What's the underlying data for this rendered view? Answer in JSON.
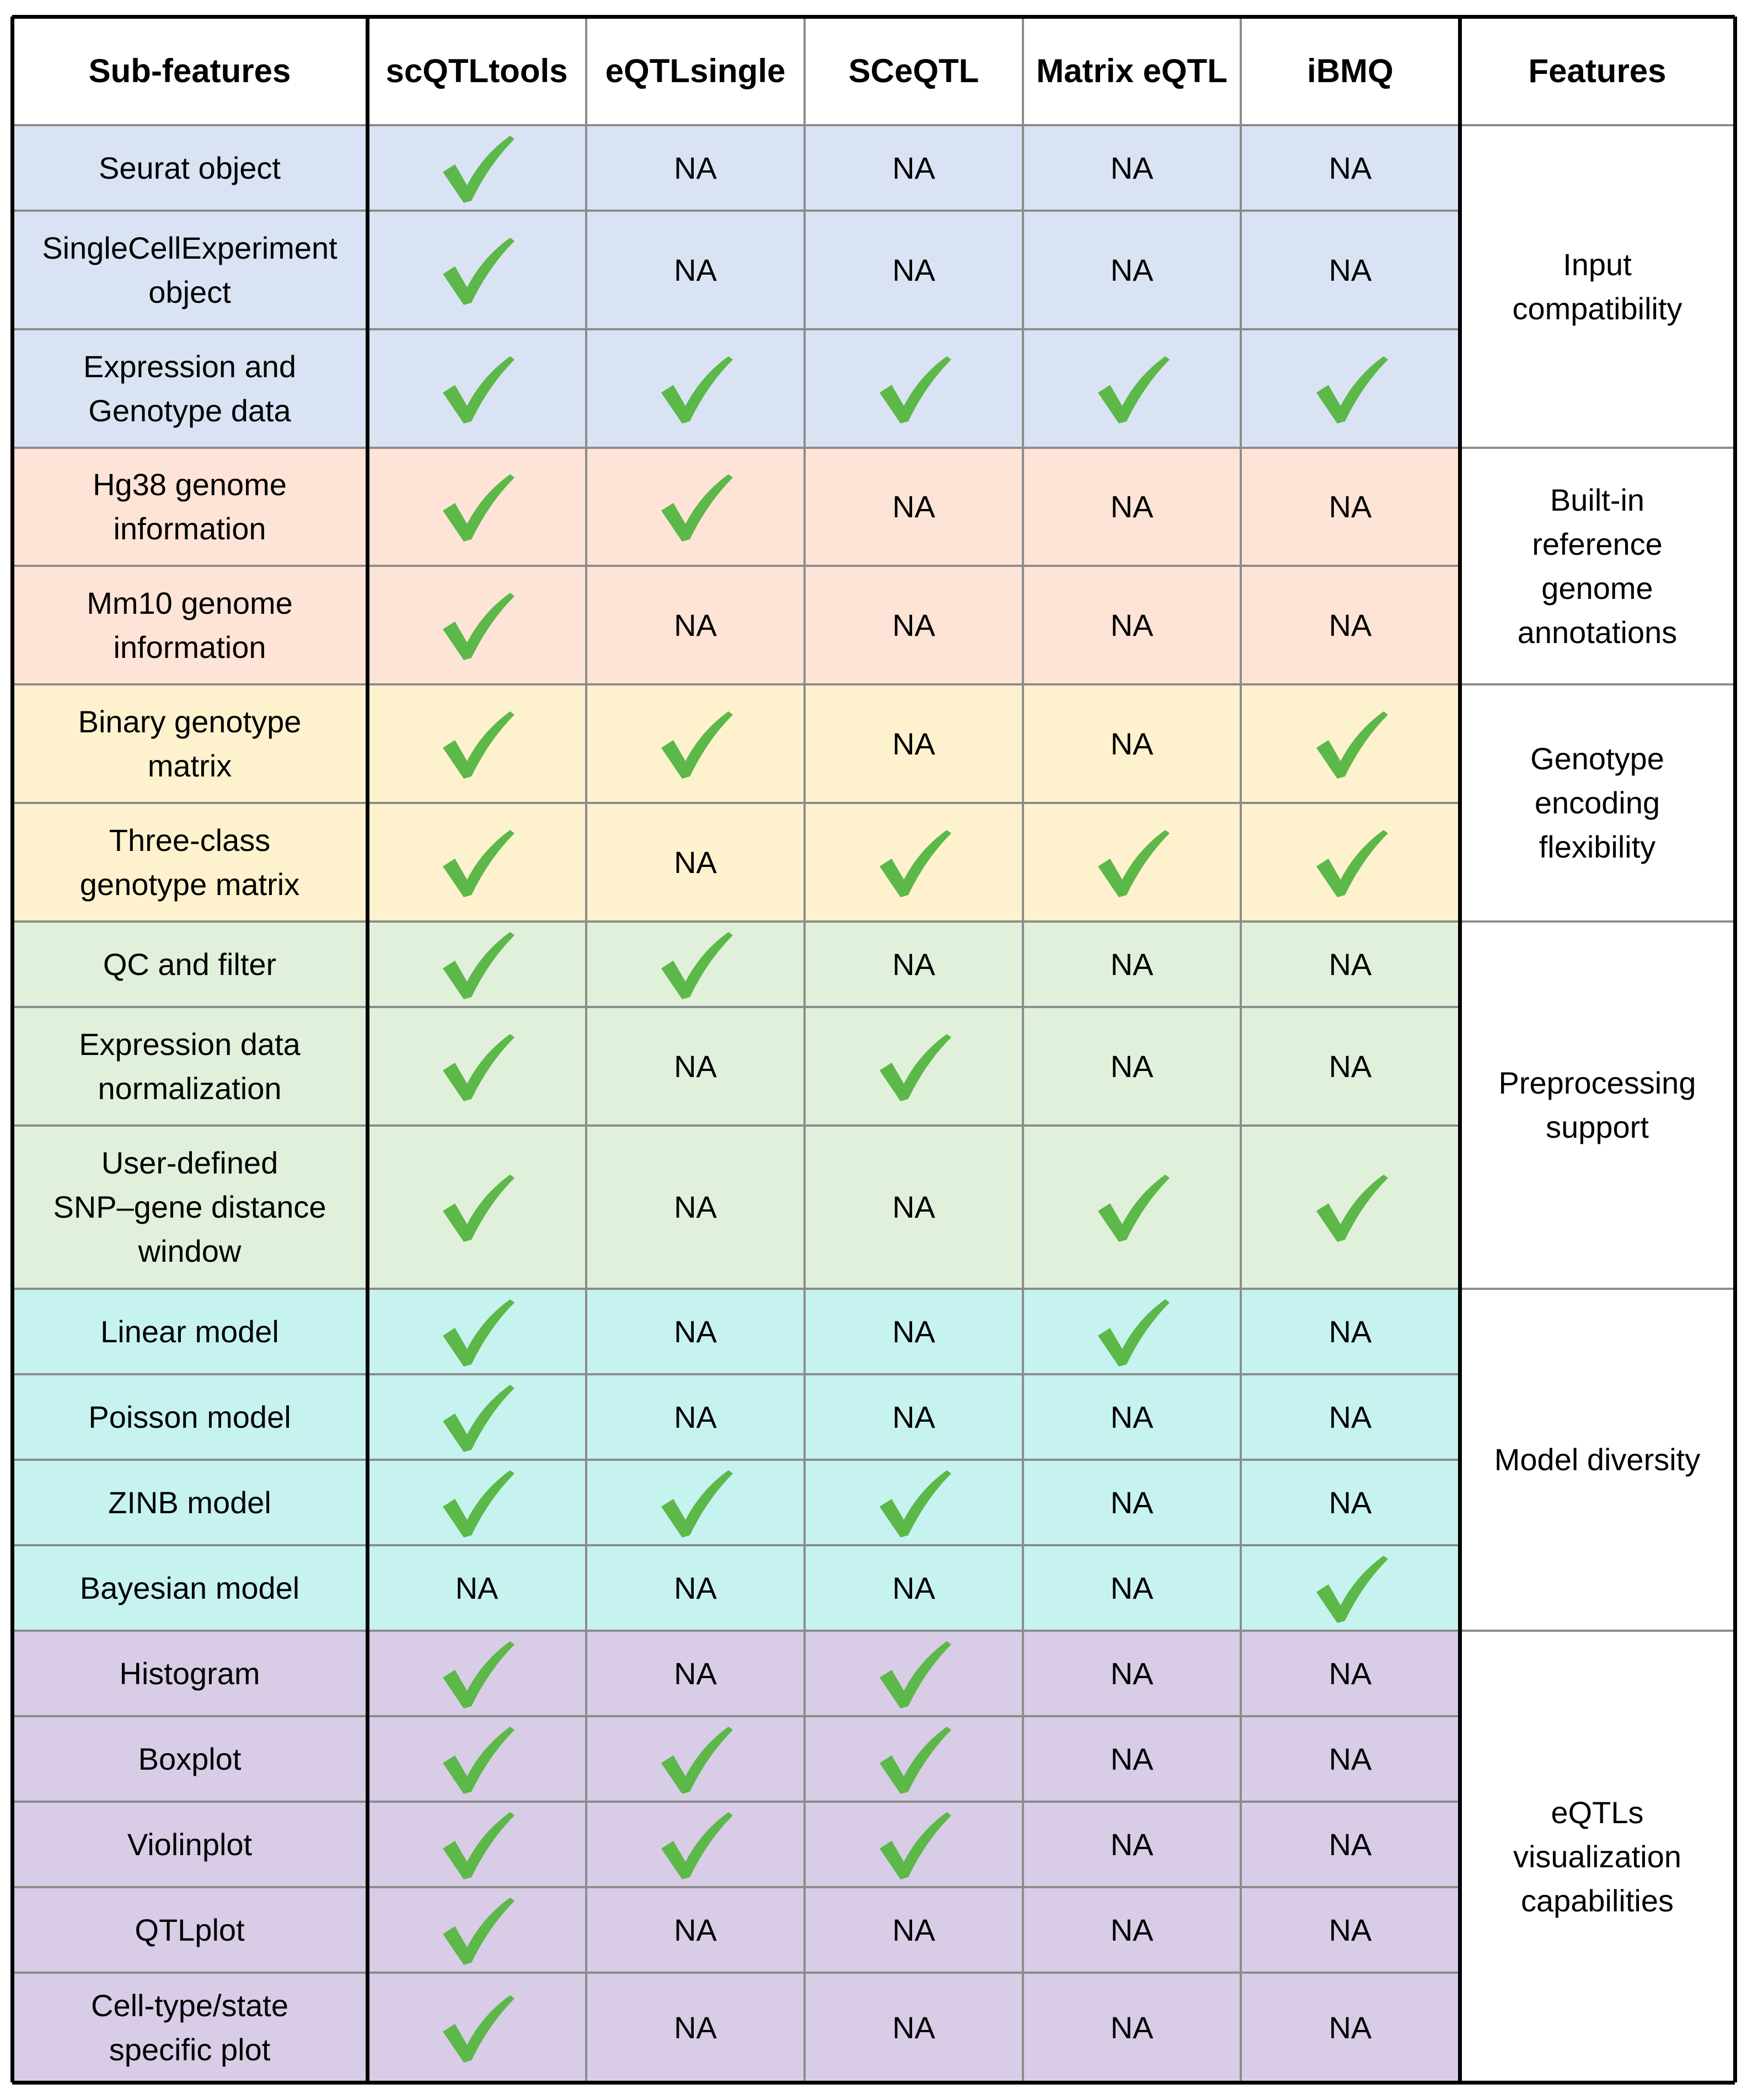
{
  "table": {
    "headers": [
      "Sub-features",
      "scQTLtools",
      "eQTLsingle",
      "SCeQTL",
      "Matrix eQTL",
      "iBMQ",
      "Features"
    ],
    "colors": {
      "input": "#dae3f3",
      "reference": "#fde4d6",
      "encoding": "#fdf2cd",
      "preprocessing": "#e1f0db",
      "model": "#c6f3f0",
      "visualization": "#d8cce6",
      "check": "#5cb849",
      "grid": "#8c8c8c",
      "border": "#000000"
    },
    "groups": [
      {
        "key": "input",
        "label": "Input\ncompatibility",
        "start": 0,
        "end": 2
      },
      {
        "key": "reference",
        "label": "Built-in\nreference\ngenome\nannotations",
        "start": 3,
        "end": 4
      },
      {
        "key": "encoding",
        "label": "Genotype\nencoding\nflexibility",
        "start": 5,
        "end": 6
      },
      {
        "key": "preprocessing",
        "label": "Preprocessing\nsupport",
        "start": 7,
        "end": 9
      },
      {
        "key": "model",
        "label": "Model diversity",
        "start": 10,
        "end": 13
      },
      {
        "key": "visualization",
        "label": "eQTLs\nvisualization\ncapabilities",
        "start": 14,
        "end": 18
      }
    ],
    "rows": [
      {
        "sub": "Seurat object",
        "group": "input",
        "values": [
          "check",
          "NA",
          "NA",
          "NA",
          "NA"
        ]
      },
      {
        "sub": "SingleCellExperiment\nobject",
        "group": "input",
        "values": [
          "check",
          "NA",
          "NA",
          "NA",
          "NA"
        ]
      },
      {
        "sub": "Expression and\nGenotype data",
        "group": "input",
        "values": [
          "check",
          "check",
          "check",
          "check",
          "check"
        ]
      },
      {
        "sub": "Hg38 genome\ninformation",
        "group": "reference",
        "values": [
          "check",
          "check",
          "NA",
          "NA",
          "NA"
        ]
      },
      {
        "sub": "Mm10 genome\ninformation",
        "group": "reference",
        "values": [
          "check",
          "NA",
          "NA",
          "NA",
          "NA"
        ]
      },
      {
        "sub": "Binary genotype\nmatrix",
        "group": "encoding",
        "values": [
          "check",
          "check",
          "NA",
          "NA",
          "check"
        ]
      },
      {
        "sub": "Three-class\ngenotype matrix",
        "group": "encoding",
        "values": [
          "check",
          "NA",
          "check",
          "check",
          "check"
        ]
      },
      {
        "sub": "QC and filter",
        "group": "preprocessing",
        "values": [
          "check",
          "check",
          "NA",
          "NA",
          "NA"
        ]
      },
      {
        "sub": "Expression data\nnormalization",
        "group": "preprocessing",
        "values": [
          "check",
          "NA",
          "check",
          "NA",
          "NA"
        ]
      },
      {
        "sub": "User-defined\nSNP–gene distance\nwindow",
        "group": "preprocessing",
        "values": [
          "check",
          "NA",
          "NA",
          "check",
          "check"
        ]
      },
      {
        "sub": "Linear model",
        "group": "model",
        "values": [
          "check",
          "NA",
          "NA",
          "check",
          "NA"
        ]
      },
      {
        "sub": "Poisson model",
        "group": "model",
        "values": [
          "check",
          "NA",
          "NA",
          "NA",
          "NA"
        ]
      },
      {
        "sub": "ZINB model",
        "group": "model",
        "values": [
          "check",
          "check",
          "check",
          "NA",
          "NA"
        ]
      },
      {
        "sub": "Bayesian model",
        "group": "model",
        "values": [
          "NA",
          "NA",
          "NA",
          "NA",
          "check"
        ]
      },
      {
        "sub": "Histogram",
        "group": "visualization",
        "values": [
          "check",
          "NA",
          "check",
          "NA",
          "NA"
        ]
      },
      {
        "sub": "Boxplot",
        "group": "visualization",
        "values": [
          "check",
          "check",
          "check",
          "NA",
          "NA"
        ]
      },
      {
        "sub": "Violinplot",
        "group": "visualization",
        "values": [
          "check",
          "check",
          "check",
          "NA",
          "NA"
        ]
      },
      {
        "sub": "QTLplot",
        "group": "visualization",
        "values": [
          "check",
          "NA",
          "NA",
          "NA",
          "NA"
        ]
      },
      {
        "sub": "Cell-type/state\nspecific plot",
        "group": "visualization",
        "values": [
          "check",
          "NA",
          "NA",
          "NA",
          "NA"
        ]
      }
    ]
  }
}
